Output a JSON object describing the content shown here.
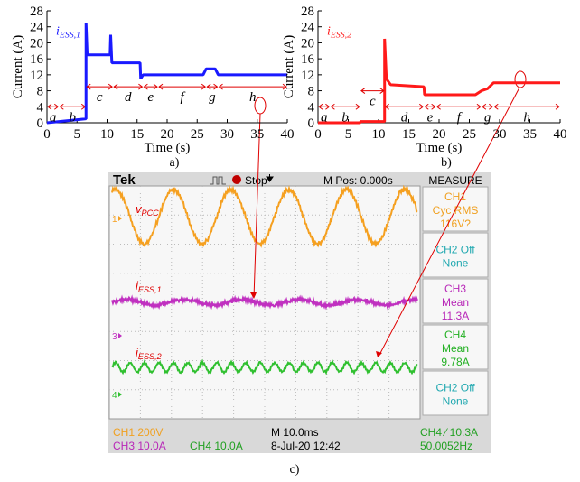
{
  "chart_data": [
    {
      "type": "line",
      "ylabel": "Current (A)",
      "xlabel": "Time (s)",
      "caption": "a)",
      "label": {
        "main": "i",
        "sub": "ESS,1"
      },
      "x": [
        0,
        6.5,
        6.5,
        6.7,
        7,
        10.5,
        10.6,
        10.8,
        11,
        15.5,
        15.6,
        16,
        26,
        26.5,
        28,
        28.5,
        40
      ],
      "series": [
        {
          "color": "#1a1aff",
          "values": [
            0,
            1,
            25,
            17,
            17,
            17,
            22,
            15,
            15,
            15,
            11,
            12,
            12,
            13.5,
            13.5,
            12,
            12
          ]
        }
      ],
      "xlim": [
        0,
        40
      ],
      "xticks": [
        0,
        5,
        10,
        15,
        20,
        25,
        30,
        35,
        40
      ],
      "ylim": [
        0,
        28
      ],
      "yticks": [
        0,
        4,
        8,
        12,
        16,
        20,
        24,
        28
      ],
      "phases": [
        {
          "label": "a",
          "x0": 0,
          "x1": 2,
          "y": 4
        },
        {
          "label": "b",
          "x0": 2,
          "x1": 6.5,
          "y": 4
        },
        {
          "label": "c",
          "x0": 6.5,
          "x1": 11,
          "y": 9
        },
        {
          "label": "d",
          "x0": 11,
          "x1": 16,
          "y": 9
        },
        {
          "label": "e",
          "x0": 16,
          "x1": 18.5,
          "y": 9
        },
        {
          "label": "f",
          "x0": 18.5,
          "x1": 26.5,
          "y": 9
        },
        {
          "label": "g",
          "x0": 26.5,
          "x1": 28.5,
          "y": 9
        },
        {
          "label": "h",
          "x0": 28.5,
          "x1": 40,
          "y": 9
        }
      ]
    },
    {
      "type": "line",
      "ylabel": "Current (A)",
      "xlabel": "Time (s)",
      "caption": "b)",
      "label": {
        "main": "i",
        "sub": "ESS,2"
      },
      "x": [
        0,
        7,
        7,
        11,
        11,
        11.3,
        12,
        17.5,
        17.6,
        26,
        27,
        28,
        29,
        40
      ],
      "series": [
        {
          "color": "#ff1a1a",
          "values": [
            0,
            0,
            0.3,
            0.3,
            21,
            11,
            9.5,
            9,
            7,
            7,
            8,
            8.5,
            10,
            10
          ]
        }
      ],
      "xlim": [
        0,
        40
      ],
      "xticks": [
        0,
        5,
        10,
        15,
        20,
        25,
        30,
        35,
        40
      ],
      "ylim": [
        0,
        28
      ],
      "yticks": [
        0,
        4,
        8,
        12,
        16,
        20,
        24,
        28
      ],
      "phases": [
        {
          "label": "a",
          "x0": 0,
          "x1": 2,
          "y": 4
        },
        {
          "label": "b",
          "x0": 2,
          "x1": 7,
          "y": 4
        },
        {
          "label": "c",
          "x0": 7,
          "x1": 11,
          "y": 8
        },
        {
          "label": "d",
          "x0": 11,
          "x1": 17.5,
          "y": 4
        },
        {
          "label": "e",
          "x0": 17.5,
          "x1": 19.5,
          "y": 4
        },
        {
          "label": "f",
          "x0": 19.5,
          "x1": 27,
          "y": 4
        },
        {
          "label": "g",
          "x0": 27,
          "x1": 29,
          "y": 4
        },
        {
          "label": "h",
          "x0": 29,
          "x1": 40,
          "y": 4
        }
      ]
    }
  ],
  "oscilloscope": {
    "brand": "Tek",
    "status": "Stop",
    "position": "M Pos: 0.000s",
    "measure_title": "MEASURE",
    "caption": "c)",
    "measures": [
      {
        "lines": [
          "CH1",
          "Cyc RMS",
          "116V?"
        ],
        "color": "#f0a020"
      },
      {
        "lines": [
          "CH2 Off",
          "None"
        ],
        "color": "#20a8b0"
      },
      {
        "lines": [
          "CH3",
          "Mean",
          "11.3A"
        ],
        "color": "#b828b8"
      },
      {
        "lines": [
          "CH4",
          "Mean",
          "9.78A"
        ],
        "color": "#22b022"
      },
      {
        "lines": [
          "CH2 Off",
          "None"
        ],
        "color": "#20a8b0"
      }
    ],
    "traces": [
      {
        "marker": "1",
        "label": {
          "main": "v",
          "sub": "PCC"
        },
        "color": "#f5a020"
      },
      {
        "marker": "3",
        "label": {
          "main": "i",
          "sub": "ESS,1"
        },
        "color": "#c030c0"
      },
      {
        "marker": "4",
        "label": {
          "main": "i",
          "sub": "ESS,2"
        },
        "color": "#30c030"
      }
    ],
    "footer": [
      {
        "text": "CH1  200V",
        "color": "#f0a020"
      },
      {
        "text": "M 10.0ms",
        "color": "#000000"
      },
      {
        "text": "CH4 ⁄ 10.3A",
        "color": "#22a022"
      },
      {
        "text": "CH3  10.0A",
        "color": "#b828b8"
      },
      {
        "text": "CH4  10.0A",
        "color": "#22a022"
      },
      {
        "text": "8-Jul-20 12:42",
        "color": "#000000"
      },
      {
        "text": "50.0052Hz",
        "color": "#22a022"
      }
    ]
  }
}
